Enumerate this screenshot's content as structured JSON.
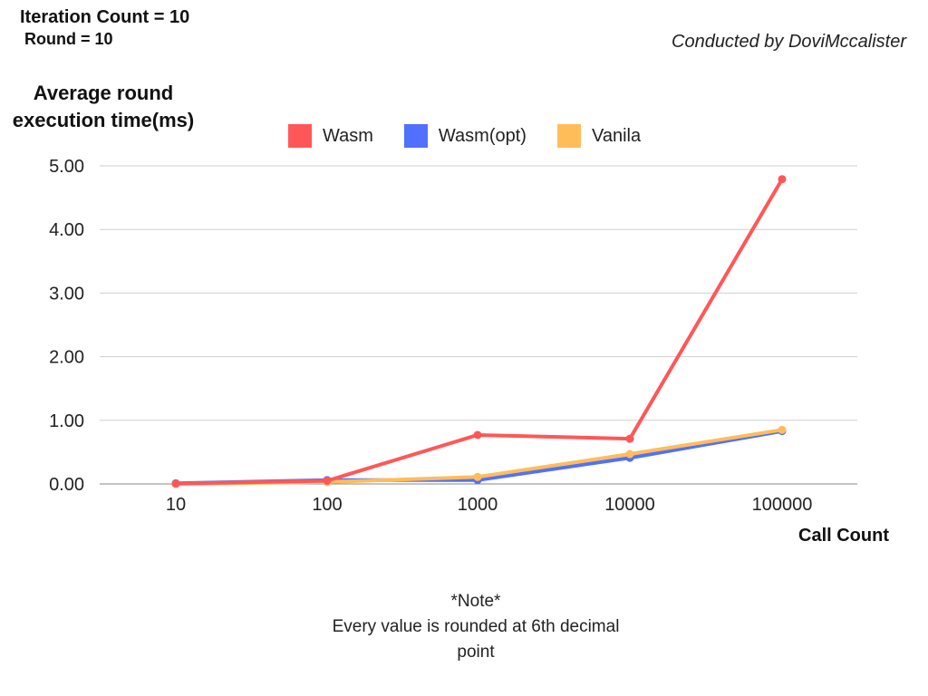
{
  "header": {
    "iteration": "Iteration Count = 10",
    "round": "Round = 10",
    "credit": "Conducted by DoviMccalister"
  },
  "note": {
    "title": "*Note*",
    "line1": "Every value is rounded at 6th decimal",
    "line2": "point"
  },
  "chart_data": {
    "type": "line",
    "ylabel_line1": "Average round",
    "ylabel_line2": "execution time(ms)",
    "xlabel": "Call Count",
    "categories": [
      "10",
      "100",
      "1000",
      "10000",
      "100000"
    ],
    "ylim": [
      0,
      5
    ],
    "yticks": [
      "0.00",
      "1.00",
      "2.00",
      "3.00",
      "4.00",
      "5.00"
    ],
    "grid": true,
    "legend_position": "top",
    "series": [
      {
        "name": "Wasm",
        "color": "#FF5757",
        "values": [
          0.005,
          0.05,
          0.77,
          0.71,
          4.79
        ]
      },
      {
        "name": "Wasm(opt)",
        "color": "#5170FF",
        "values": [
          0.01,
          0.06,
          0.06,
          0.41,
          0.83
        ]
      },
      {
        "name": "Vanila",
        "color": "#FFBD59",
        "values": [
          0.0,
          0.03,
          0.11,
          0.47,
          0.85
        ]
      }
    ]
  }
}
